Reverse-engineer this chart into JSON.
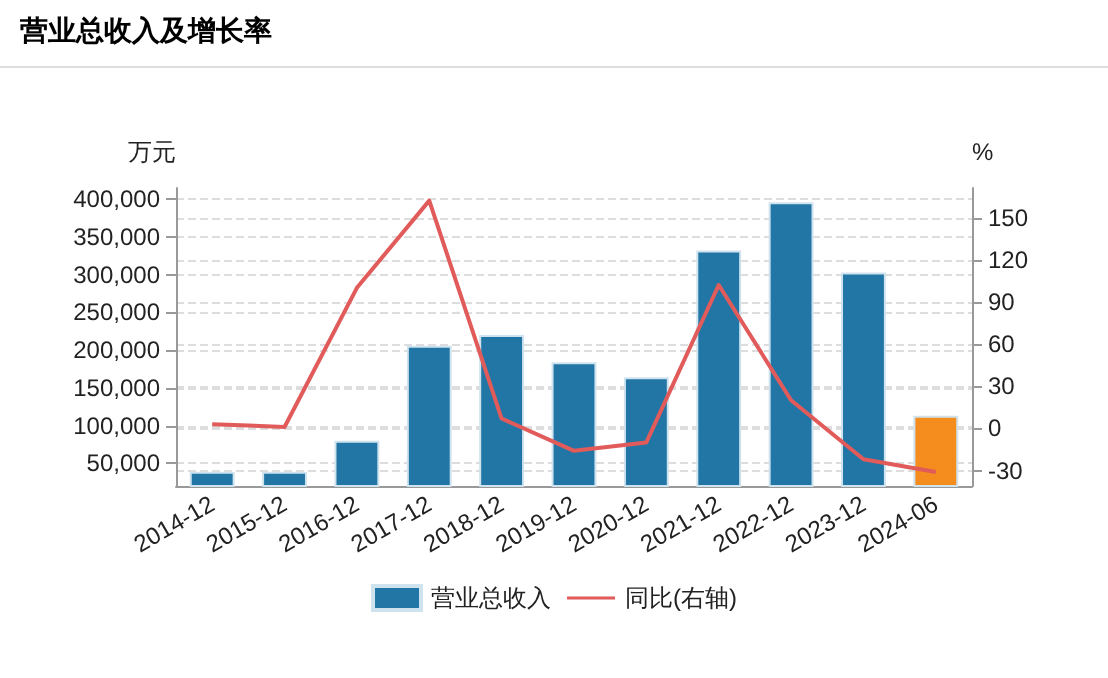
{
  "chart_data": {
    "type": "bar",
    "title": "营业总收入及增长率",
    "ylabel": "万元",
    "y2label": "%",
    "categories": [
      "2014-12",
      "2015-12",
      "2016-12",
      "2017-12",
      "2018-12",
      "2019-12",
      "2020-12",
      "2021-12",
      "2022-12",
      "2023-12",
      "2024-06"
    ],
    "series": [
      {
        "name": "营业总收入",
        "color": "#2276a5",
        "colors": [
          "#2276a5",
          "#2276a5",
          "#2276a5",
          "#2276a5",
          "#2276a5",
          "#2276a5",
          "#2276a5",
          "#2276a5",
          "#2276a5",
          "#2276a5",
          "#f48c1e"
        ],
        "values": [
          39000,
          39000,
          80000,
          206000,
          220000,
          184000,
          164000,
          332000,
          396000,
          303000,
          113000
        ]
      },
      {
        "name": "同比(右轴)",
        "type": "line",
        "axis": "y2",
        "color": "#e15b5b",
        "values": [
          3,
          1,
          100,
          162,
          7,
          -16,
          -10,
          102,
          20,
          -22,
          -31
        ]
      }
    ],
    "ylim": [
      20000,
      415000
    ],
    "yticks": [
      {
        "value": 50000,
        "label": "50,000"
      },
      {
        "value": 100000,
        "label": "100,000"
      },
      {
        "value": 150000,
        "label": "150,000"
      },
      {
        "value": 200000,
        "label": "200,000"
      },
      {
        "value": 250000,
        "label": "250,000"
      },
      {
        "value": 300000,
        "label": "300,000"
      },
      {
        "value": 350000,
        "label": "350,000"
      },
      {
        "value": 400000,
        "label": "400,000"
      }
    ],
    "y2lim": [
      -41,
      171
    ],
    "y2ticks": [
      -30,
      0,
      30,
      60,
      90,
      120,
      150
    ],
    "grid": "y",
    "legend": "bottom",
    "marker": "none",
    "line_style": "solid"
  }
}
